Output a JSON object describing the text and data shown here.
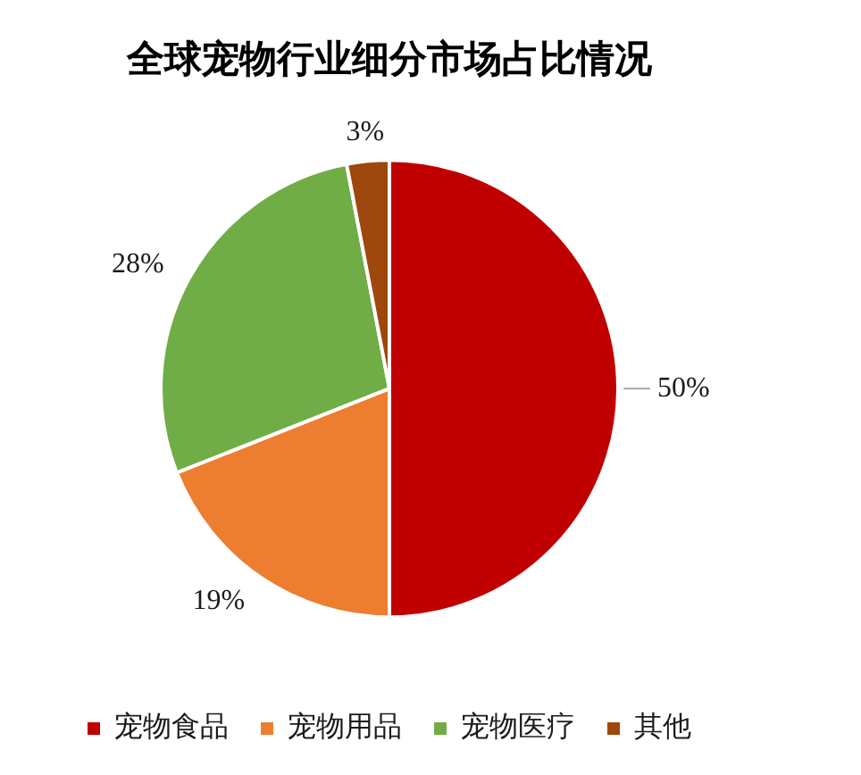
{
  "chart_data": {
    "type": "pie",
    "title": "全球宠物行业细分市场占比情况",
    "categories": [
      "宠物食品",
      "宠物用品",
      "宠物医疗",
      "其他"
    ],
    "values": [
      50,
      19,
      28,
      3
    ],
    "colors": [
      "#c00000",
      "#ed7d31",
      "#70ad47",
      "#9e480e"
    ],
    "value_labels": [
      "50%",
      "19%",
      "28%",
      "3%"
    ],
    "legend": "bottom"
  }
}
